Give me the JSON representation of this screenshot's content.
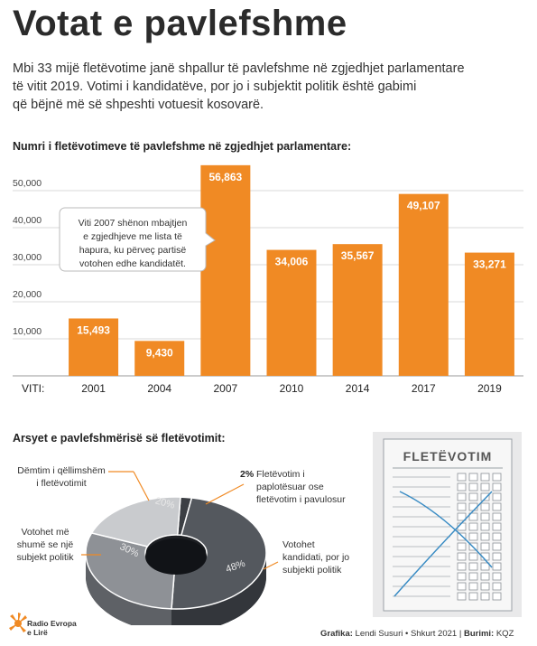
{
  "title": "Votat e pavlefshme",
  "intro": [
    "Mbi 33 mijë fletëvotime janë shpallur të pavlefshme në zgjedhjet parlamentare",
    "të vitit 2019. Votimi i kandidatëve, por jo i subjektit politik është gabimi",
    "që bëjnë më së shpeshti votuesit kosovarë."
  ],
  "bar_section_title": "Numri i fletëvotimeve të pavlefshme në zgjedhjet parlamentare:",
  "pie_section_title": "Arsyet e pavlefshmërisë së fletëvotimit:",
  "callout": [
    "Viti 2007 shënon mbajtjen",
    "e zgjedhjeve me lista të",
    "hapura, ku përveç partisë",
    "votohen edhe kandidatët."
  ],
  "ballot_title": "FLETËVOTIM",
  "logo_text": [
    "Radio Evropa",
    "e Lirë"
  ],
  "credits": {
    "grafika_label": "Grafika:",
    "grafika_value": " Lendi Susuri • Shkurt 2021 | ",
    "burimi_label": "Burimi:",
    "burimi_value": " KQZ"
  },
  "colors": {
    "bar": "#f08a24",
    "pie_dark": "#3c3f44",
    "pie_mid": "#54585e",
    "pie_light": "#8e9196",
    "pie_lightest": "#c9cbce"
  },
  "chart_data": [
    {
      "type": "bar",
      "title": "Numri i fletëvotimeve të pavlefshme në zgjedhjet parlamentare:",
      "x_label_prefix": "VITI:",
      "categories": [
        "2001",
        "2004",
        "2007",
        "2010",
        "2014",
        "2017",
        "2019"
      ],
      "values": [
        15493,
        9430,
        56863,
        34006,
        35567,
        49107,
        33271
      ],
      "value_labels": [
        "15,493",
        "9,430",
        "56,863",
        "34,006",
        "35,567",
        "49,107",
        "33,271"
      ],
      "yticks": [
        10000,
        20000,
        30000,
        40000,
        50000
      ],
      "ytick_labels": [
        "10,000",
        "20,000",
        "30,000",
        "40,000",
        "50,000"
      ],
      "ylim": [
        0,
        60000
      ],
      "grid": true
    },
    {
      "type": "pie",
      "title": "Arsyet e pavlefshmërisë së fletëvotimit:",
      "slices": [
        {
          "label": "Votohet kandidati, por jo subjekti politik",
          "value": 48,
          "display": "48%"
        },
        {
          "label": "Votohet më shumë se një subjekt politik",
          "value": 30,
          "display": "30%"
        },
        {
          "label": "Dëmtim i qëllimshëm i fletëvotimit",
          "value": 20,
          "display": "20%"
        },
        {
          "label": "Fletëvotim i paplotësuar ose fletëvotim i pavulosur",
          "value": 2,
          "display": "2%"
        }
      ],
      "annotations": {
        "votohet_kandidati": [
          "Votohet",
          "kandidati, por jo",
          "subjekti politik"
        ],
        "me_shume": [
          "Votohet më",
          "shumë se një",
          "subjekt politik"
        ],
        "demtim": [
          "Dëmtim i qëllimshëm",
          "i fletëvotimit"
        ],
        "paplotesuar_pct": "2%",
        "paplotesuar": [
          "Fletëvotim i",
          "paplotësuar ose",
          "fletëvotim i pavulosur"
        ]
      }
    }
  ]
}
